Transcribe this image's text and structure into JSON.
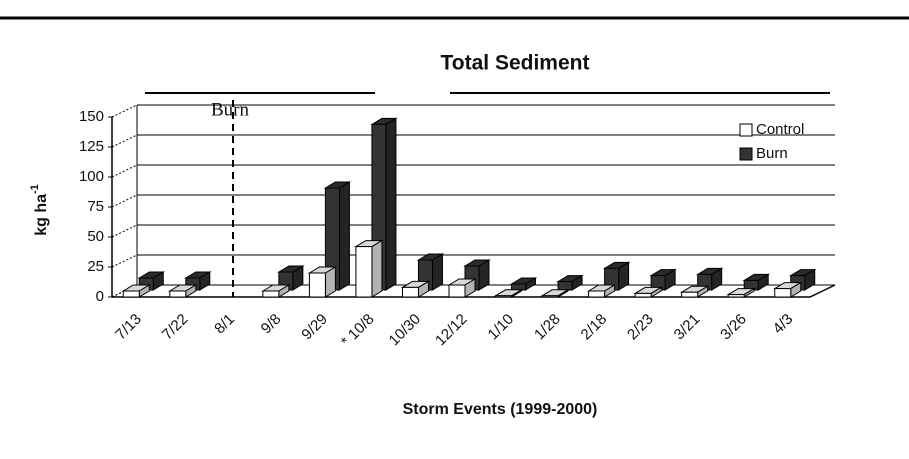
{
  "chart_data": {
    "type": "bar3d",
    "title": "Total Sediment",
    "x_label": "Storm Events (1999-2000)",
    "y_label": "kg ha",
    "y_label_exponent": "-1",
    "annotation": "Burn",
    "categories": [
      "7/13",
      "7/22",
      "8/1",
      "9/8",
      "9/29",
      "* 10/8",
      "10/30",
      "12/12",
      "1/10",
      "1/28",
      "2/18",
      "2/23",
      "3/21",
      "3/26",
      "4/3"
    ],
    "series": [
      {
        "name": "Control",
        "color": "#ffffff",
        "values": [
          5,
          5,
          null,
          5,
          20,
          42,
          8,
          10,
          1,
          1,
          5,
          3,
          4,
          2,
          7
        ]
      },
      {
        "name": "Burn",
        "color": "#333333",
        "values": [
          10,
          10,
          null,
          15,
          85,
          138,
          25,
          20,
          5,
          7,
          18,
          12,
          13,
          8,
          12
        ]
      }
    ],
    "ylim": [
      0,
      150
    ],
    "yticks": [
      0,
      25,
      50,
      75,
      100,
      125,
      150
    ],
    "grid": true,
    "legend": "top-right"
  }
}
